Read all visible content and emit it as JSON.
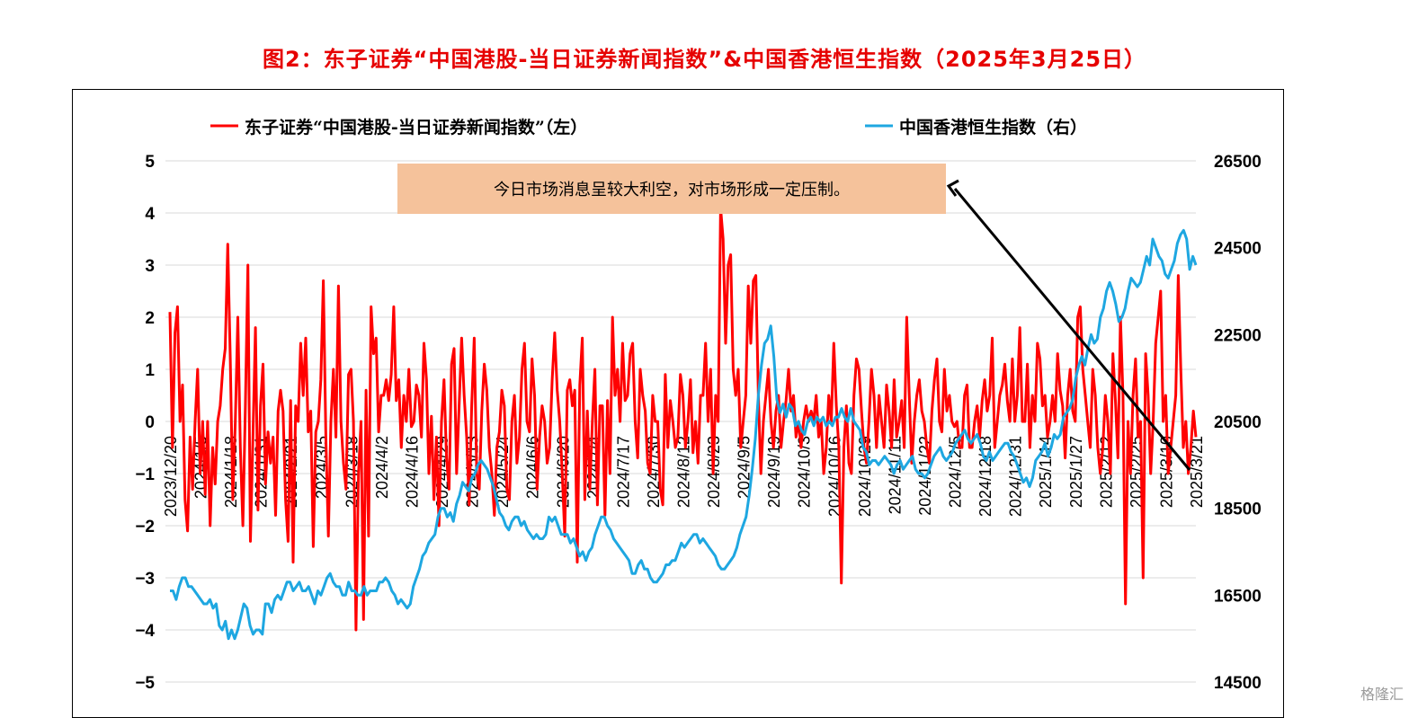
{
  "title": "图2：东子证券“中国港股-当日证券新闻指数”&中国香港恒生指数（2025年3月25日）",
  "watermark": "格隆汇",
  "annotation": "今日市场消息呈较大利空，对市场形成一定压制。",
  "colors": {
    "title": "#e60000",
    "news_index": "#ff0000",
    "hsi": "#1ea7e1",
    "annotation_bg": "#f5c29b",
    "grid": "#d9d9d9"
  },
  "chart_data": {
    "type": "line",
    "title": "图2：东子证券“中国港股-当日证券新闻指数”&中国香港恒生指数（2025年3月25日）",
    "y_left": {
      "ticks": [
        "5",
        "4",
        "3",
        "2",
        "1",
        "0",
        "−1",
        "−2",
        "−3",
        "−4",
        "−5"
      ],
      "range": [
        -5,
        5
      ]
    },
    "y_right": {
      "ticks": [
        "26500",
        "24500",
        "22500",
        "20500",
        "18500",
        "16500",
        "14500"
      ],
      "range": [
        14500,
        26500
      ]
    },
    "x_ticks": [
      "2023/12/20",
      "2024/1/5",
      "2024/1/18",
      "2024/1/31",
      "2024/2/21",
      "2024/3/5",
      "2024/3/18",
      "2024/4/2",
      "2024/4/16",
      "2024/4/29",
      "2024/5/13",
      "2024/5/24",
      "2024/6/6",
      "2024/6/20",
      "2024/7/4",
      "2024/7/17",
      "2024/7/30",
      "2024/8/12",
      "2024/8/23",
      "2024/9/5",
      "2024/9/19",
      "2024/10/3",
      "2024/10/16",
      "2024/10/29",
      "2024/11/11",
      "2024/11/22",
      "2024/12/5",
      "2024/12/18",
      "2024/12/31",
      "2025/1/14",
      "2025/1/27",
      "2025/2/12",
      "2025/2/25",
      "2025/3/10",
      "2025/3/21"
    ],
    "grid": true,
    "legend_position": "top",
    "series": [
      {
        "name": "东子证券“中国港股-当日证券新闻指数”（左）",
        "axis": "left",
        "color": "#ff0000",
        "values": [
          2.1,
          -0.5,
          1.7,
          2.2,
          0.0,
          0.7,
          -1.5,
          -2.1,
          -0.3,
          -1.3,
          0.0,
          1.0,
          -1.0,
          0.0,
          -1.4,
          0.0,
          -2.0,
          -0.5,
          -1.2,
          0.0,
          0.3,
          1.0,
          1.4,
          3.4,
          1.2,
          -1.5,
          0.0,
          2.0,
          -0.5,
          -2.0,
          0.3,
          3.0,
          -2.3,
          -0.3,
          1.8,
          -1.7,
          0.3,
          1.1,
          -1.2,
          -0.2,
          -0.8,
          -0.3,
          -1.8,
          0.2,
          0.6,
          0.2,
          -1.5,
          -2.3,
          0.4,
          -2.7,
          0.3,
          0.0,
          1.5,
          0.5,
          1.6,
          -0.2,
          0.2,
          -2.4,
          -0.2,
          0.0,
          0.8,
          2.7,
          -0.3,
          -2.2,
          0.0,
          1.0,
          -0.3,
          2.6,
          0.0,
          -0.8,
          -1.3,
          0.9,
          1.0,
          0.0,
          -4.0,
          -1.0,
          0.0,
          -3.8,
          0.6,
          -2.2,
          2.2,
          1.3,
          1.6,
          -0.2,
          0.5,
          0.5,
          0.8,
          0.4,
          0.9,
          2.2,
          0.4,
          0.8,
          -0.5,
          0.5,
          0.0,
          1.0,
          -0.1,
          0.0,
          0.7,
          0.5,
          -0.3,
          1.5,
          0.8,
          -1.0,
          0.1,
          -1.5,
          -0.3,
          -2.0,
          0.0,
          0.8,
          -0.7,
          -1.3,
          1.1,
          1.4,
          -1.0,
          0.3,
          1.6,
          0.5,
          -0.3,
          -1.6,
          0.3,
          1.6,
          -1.0,
          -1.3,
          0.2,
          1.1,
          0.6,
          -0.5,
          -1.0,
          -1.8,
          -0.5,
          -0.2,
          0.6,
          0.3,
          -1.3,
          -1.5,
          0.0,
          0.5,
          -0.8,
          -0.3,
          1.0,
          1.5,
          0.0,
          -0.2,
          1.2,
          0.5,
          -1.3,
          -0.3,
          0.3,
          0.0,
          -0.8,
          -0.5,
          0.8,
          1.7,
          0.6,
          0.0,
          -1.0,
          -2.2,
          0.6,
          0.8,
          0.3,
          0.6,
          -2.7,
          0.7,
          1.6,
          -1.5,
          0.2,
          -1.3,
          0.0,
          1.0,
          -1.6,
          0.3,
          0.3,
          -1.8,
          0.4,
          -1.0,
          2.0,
          0.5,
          1.0,
          0.0,
          1.5,
          0.4,
          0.5,
          1.3,
          1.5,
          0.0,
          -0.7,
          1.0,
          0.5,
          0.2,
          -0.8,
          -1.0,
          0.5,
          0.0,
          0.0,
          -1.3,
          -1.6,
          0.9,
          -0.5,
          0.4,
          0.0,
          -0.5,
          -0.3,
          0.9,
          0.5,
          -0.5,
          0.0,
          0.8,
          -0.6,
          0.0,
          -0.8,
          0.5,
          0.5,
          1.5,
          0.0,
          1.0,
          -1.0,
          0.5,
          0.0,
          4.1,
          3.5,
          1.5,
          3.0,
          3.2,
          1.0,
          0.5,
          1.0,
          -0.5,
          0.0,
          0.5,
          2.6,
          1.5,
          2.7,
          2.8,
          0.5,
          -1.0,
          0.0,
          0.5,
          1.0,
          0.0,
          -0.5,
          0.2,
          0.5,
          -0.5,
          0.0,
          0.4,
          1.0,
          0.2,
          0.5,
          -0.3,
          0.0,
          -0.5,
          0.0,
          0.3,
          0.0,
          0.2,
          0.0,
          0.5,
          -0.3,
          0.0,
          -1.0,
          -0.5,
          0.5,
          0.0,
          1.5,
          0.3,
          -0.5,
          -3.1,
          -0.5,
          0.3,
          -0.8,
          -1.0,
          0.5,
          1.2,
          1.0,
          0.2,
          -0.5,
          -0.8,
          0.0,
          1.0,
          0.5,
          -0.5,
          0.5,
          0.0,
          -0.5,
          0.7,
          0.2,
          -0.5,
          0.8,
          -0.3,
          0.0,
          0.4,
          -0.5,
          2.0,
          0.5,
          -0.8,
          0.0,
          0.5,
          0.8,
          0.2,
          0.0,
          -0.5,
          -0.8,
          0.2,
          0.8,
          1.2,
          0.0,
          -0.2,
          1.0,
          0.2,
          0.5,
          0.0,
          -0.1,
          0.0,
          -0.5,
          -0.5,
          0.5,
          0.7,
          -0.5,
          -0.5,
          0.0,
          0.3,
          -0.3,
          0.4,
          0.8,
          0.2,
          0.5,
          1.6,
          -0.5,
          0.0,
          0.5,
          0.7,
          1.1,
          0.4,
          0.0,
          1.2,
          0.0,
          0.5,
          1.8,
          0.0,
          0.0,
          1.1,
          -0.5,
          0.5,
          0.0,
          1.5,
          1.2,
          0.3,
          0.5,
          -0.3,
          0.0,
          0.5,
          0.0,
          1.3,
          0.6,
          0.3,
          -0.7,
          0.5,
          1.0,
          0.2,
          0.0,
          2.0,
          2.2,
          1.0,
          0.5,
          0.0,
          -0.5,
          1.0,
          0.5,
          -0.5,
          -1.0,
          -0.5,
          0.5,
          0.0,
          -1.0,
          1.3,
          0.4,
          -0.7,
          2.0,
          0.5,
          -3.5,
          0.0,
          -1.0,
          0.5,
          1.2,
          -0.3,
          0.0,
          -3.0,
          1.3,
          0.5,
          -1.0,
          0.0,
          1.5,
          2.0,
          2.5,
          0.0,
          0.5,
          -1.0,
          -0.5,
          0.0,
          0.5,
          2.8,
          1.0,
          -0.5,
          0.0,
          -1.0,
          -0.5,
          0.2,
          -0.3
        ]
      },
      {
        "name": "中国香港恒生指数（右）",
        "axis": "right",
        "color": "#1ea7e1",
        "values": [
          16600,
          16600,
          16400,
          16700,
          16900,
          16900,
          16700,
          16700,
          16600,
          16500,
          16400,
          16300,
          16300,
          16400,
          16200,
          16300,
          15800,
          15700,
          15900,
          15500,
          15700,
          15500,
          15700,
          16000,
          16300,
          16200,
          15800,
          15600,
          15700,
          15700,
          15600,
          16300,
          16300,
          16100,
          16400,
          16500,
          16400,
          16600,
          16800,
          16800,
          16600,
          16700,
          16800,
          16600,
          16600,
          16700,
          16500,
          16300,
          16600,
          16500,
          16700,
          16900,
          17000,
          16800,
          16700,
          16700,
          16500,
          16500,
          16800,
          16600,
          16600,
          16500,
          16500,
          16700,
          16500,
          16600,
          16600,
          16600,
          16800,
          16800,
          16900,
          16800,
          16600,
          16500,
          16300,
          16400,
          16300,
          16200,
          16300,
          16700,
          16900,
          17100,
          17400,
          17500,
          17700,
          17800,
          17900,
          18300,
          18500,
          18500,
          18300,
          18400,
          18200,
          18600,
          18800,
          19100,
          19000,
          18900,
          19200,
          19300,
          19500,
          19600,
          19500,
          19400,
          19200,
          19000,
          18700,
          18400,
          18300,
          18100,
          18000,
          18200,
          18300,
          18300,
          18100,
          18200,
          18000,
          17900,
          17800,
          17900,
          17800,
          17800,
          17900,
          18300,
          18200,
          18300,
          18100,
          17900,
          17900,
          17900,
          17700,
          17800,
          17600,
          17400,
          17500,
          17300,
          17500,
          17600,
          17900,
          18100,
          18300,
          18300,
          18100,
          18000,
          17800,
          17700,
          17600,
          17500,
          17400,
          17300,
          17000,
          17000,
          17200,
          17300,
          17100,
          17100,
          16900,
          16800,
          16800,
          16900,
          17000,
          17200,
          17200,
          17300,
          17300,
          17500,
          17700,
          17600,
          17700,
          17800,
          17900,
          17900,
          17700,
          17800,
          17700,
          17600,
          17500,
          17400,
          17200,
          17100,
          17100,
          17200,
          17300,
          17400,
          17600,
          17900,
          18100,
          18300,
          18800,
          19400,
          20100,
          21100,
          21800,
          22300,
          22400,
          22700,
          22000,
          21000,
          20700,
          20900,
          20600,
          20900,
          20800,
          20400,
          20500,
          20300,
          20200,
          20500,
          20600,
          20400,
          20600,
          20500,
          20600,
          20400,
          20500,
          20400,
          20600,
          20600,
          20800,
          20600,
          20500,
          20800,
          20500,
          20400,
          20300,
          19900,
          19800,
          19500,
          19600,
          19600,
          19500,
          19600,
          19700,
          19600,
          19500,
          19300,
          19500,
          19600,
          19400,
          19500,
          19600,
          19700,
          19400,
          19300,
          19300,
          19200,
          19300,
          19500,
          19700,
          19800,
          19900,
          19700,
          19600,
          19700,
          19800,
          20000,
          20100,
          20200,
          20300,
          20100,
          20000,
          20100,
          20200,
          20000,
          19700,
          19600,
          19800,
          19600,
          19700,
          19800,
          19900,
          20000,
          20000,
          19800,
          19700,
          19500,
          19300,
          19100,
          19200,
          19000,
          19200,
          19600,
          19700,
          19800,
          20000,
          19700,
          19900,
          20200,
          20100,
          20200,
          20600,
          20700,
          20800,
          21000,
          21500,
          21800,
          22000,
          21800,
          22200,
          22500,
          22300,
          22400,
          22900,
          23100,
          23500,
          23700,
          23500,
          23200,
          22800,
          22900,
          23100,
          23500,
          23800,
          23700,
          23600,
          23700,
          24000,
          24300,
          24100,
          24700,
          24500,
          24300,
          24200,
          23900,
          23800,
          24000,
          24200,
          24600,
          24800,
          24900,
          24700,
          24000,
          24300,
          24100
        ]
      }
    ]
  }
}
